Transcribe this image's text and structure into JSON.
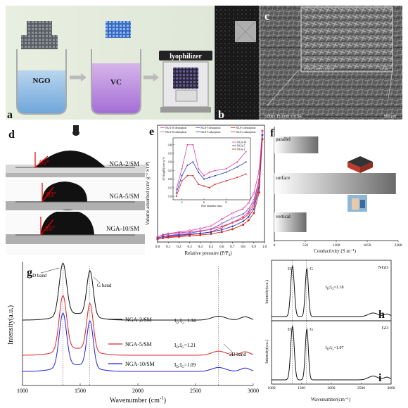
{
  "panel_letters": {
    "a": "a",
    "b": "b",
    "c": "c",
    "d": "d",
    "e": "e",
    "f": "f",
    "g": "g",
    "h": "h",
    "i": "i"
  },
  "panel_a": {
    "beaker1": "NGO",
    "beaker2": "VC",
    "device": "lyophilizer"
  },
  "panel_c": {
    "inset_meta": "5.00kV 5.3mm ×1.0k SE",
    "inset_scale": "5.0 μm",
    "meta": "5.00kV 15.2mm ×70 SE",
    "scale": "500 μm"
  },
  "panel_d": {
    "rows": [
      {
        "angle": "65°",
        "label": "NGA-2/SM"
      },
      {
        "angle": "93°",
        "label": "NGA-5/SM"
      },
      {
        "angle": "85°",
        "label": "NGA-10/SM"
      }
    ]
  },
  "chart_data": [
    {
      "panel": "e",
      "type": "line",
      "xlabel": "Relative pressure (P/P",
      "xlabel_sub": "0",
      "xlabel_end": ")",
      "ylabel": "Volume adsorbed (cm³ g⁻¹ STP)",
      "xlim": [
        0.0,
        1.0
      ],
      "xticks": [
        "0.0",
        "0.1",
        "0.2",
        "0.3",
        "0.4",
        "0.5",
        "0.6",
        "0.7",
        "0.8",
        "0.9",
        "1.0"
      ],
      "legend": [
        "NGA-10 desorption",
        "NGA-5 desorption",
        "NGA-2 desorption",
        "NGA-10 adsorption",
        "NGA-5 adsorption",
        "NGA-2 adsorption"
      ],
      "x": [
        0.0,
        0.05,
        0.1,
        0.2,
        0.3,
        0.4,
        0.5,
        0.6,
        0.7,
        0.8,
        0.85,
        0.9,
        0.95,
        0.98
      ],
      "series": [
        {
          "name": "NGA-10 desorption",
          "color": "#e040a0",
          "values": [
            18,
            26,
            30,
            36,
            41,
            48,
            58,
            82,
            104,
            120,
            140,
            175,
            255,
            400
          ]
        },
        {
          "name": "NGA-5 desorption",
          "color": "#6a5acd",
          "values": [
            14,
            20,
            23,
            28,
            32,
            38,
            46,
            66,
            86,
            100,
            118,
            150,
            225,
            385
          ]
        },
        {
          "name": "NGA-2 desorption",
          "color": "#dd2222",
          "values": [
            10,
            15,
            18,
            22,
            26,
            30,
            36,
            52,
            70,
            84,
            100,
            130,
            205,
            370
          ]
        },
        {
          "name": "NGA-10 adsorption",
          "color": "#e040a0",
          "values": [
            18,
            25,
            28,
            33,
            36,
            40,
            46,
            56,
            70,
            90,
            108,
            140,
            220,
            400
          ]
        },
        {
          "name": "NGA-5 adsorption",
          "color": "#1e40c8",
          "values": [
            14,
            19,
            21,
            25,
            28,
            31,
            36,
            44,
            56,
            74,
            90,
            118,
            195,
            385
          ]
        },
        {
          "name": "NGA-2 adsorption",
          "color": "#dd2222",
          "values": [
            10,
            14,
            16,
            19,
            22,
            25,
            29,
            36,
            46,
            62,
            78,
            104,
            178,
            370
          ]
        }
      ]
    },
    {
      "panel": "e-inset",
      "type": "line",
      "xlabel": "Pore diameter (nm)",
      "ylabel": "dV/dlog(D) (cm³ g⁻¹)",
      "xticks": [
        "4",
        "6",
        "8"
      ],
      "yticks": [
        "0.10",
        "0.15",
        "0.20",
        "0.25",
        "0.30",
        "0.35",
        "0.40"
      ],
      "legend": [
        "NGA-10",
        "NGA-5",
        "NGA-2"
      ],
      "x": [
        3.5,
        4,
        4.5,
        5,
        5.5,
        6,
        6.5,
        7,
        8,
        9,
        9.8
      ],
      "series": [
        {
          "name": "NGA-10",
          "color": "#e040a0",
          "values": [
            0.14,
            0.26,
            0.4,
            0.4,
            0.26,
            0.22,
            0.24,
            0.25,
            0.26,
            0.3,
            0.36
          ]
        },
        {
          "name": "NGA-5",
          "color": "#1e40c8",
          "values": [
            0.12,
            0.22,
            0.28,
            0.3,
            0.24,
            0.2,
            0.21,
            0.22,
            0.24,
            0.27,
            0.3
          ]
        },
        {
          "name": "NGA-2",
          "color": "#dd2222",
          "values": [
            0.1,
            0.19,
            0.22,
            0.22,
            0.17,
            0.16,
            0.15,
            0.17,
            0.19,
            0.21,
            0.23
          ]
        }
      ]
    },
    {
      "panel": "f",
      "type": "bar",
      "orientation": "horizontal",
      "categories": [
        "parallel",
        "surface",
        "vertical"
      ],
      "values": [
        780,
        2160,
        570
      ],
      "xlabel": "Conductivity (S m⁻¹)",
      "xticks": [
        "0",
        "550",
        "1100",
        "1650",
        "2200"
      ],
      "xlim": [
        0,
        2200
      ]
    },
    {
      "panel": "g",
      "type": "line",
      "xlabel": "Wavenumber (cm",
      "xlabel_sup": "-1",
      "xlabel_end": ")",
      "ylabel": "Intensity(a.u.)",
      "xlim": [
        1000,
        3000
      ],
      "xticks": [
        "1000",
        "1500",
        "2000",
        "2500",
        "3000"
      ],
      "annotations": [
        "D band",
        "G band",
        "2D band"
      ],
      "series": [
        {
          "name": "NGA-2/SM",
          "color": "#111111",
          "ratio": "I",
          "ratio_sub": "D",
          "ratio_mid": ":I",
          "ratio_sub2": "G",
          "ratio_val": "=1.34"
        },
        {
          "name": "NGA-5/SM",
          "color": "#e02020",
          "ratio": "I",
          "ratio_sub": "D",
          "ratio_mid": ":I",
          "ratio_sub2": "G",
          "ratio_val": "=1.21"
        },
        {
          "name": "NGA-10/SM",
          "color": "#2020e0",
          "ratio": "I",
          "ratio_sub": "D",
          "ratio_mid": ":I",
          "ratio_sub2": "G",
          "ratio_val": "=1.09"
        }
      ]
    },
    {
      "panel": "h",
      "type": "line",
      "ylabel": "Intensity(a.u.)",
      "label": "NGO",
      "peaks": [
        "D",
        "G"
      ],
      "ratio": "I",
      "ratio_sub": "D",
      "ratio_mid": ":I",
      "ratio_sub2": "G",
      "ratio_val": "=1.18"
    },
    {
      "panel": "i",
      "type": "line",
      "ylabel": "Intensity(a.u.)",
      "label": "GO",
      "peaks": [
        "D",
        "G"
      ],
      "ratio": "I",
      "ratio_sub": "D",
      "ratio_mid": ":I",
      "ratio_sub2": "G",
      "ratio_val": "=1.07",
      "xlabel": "Wavenumber(cm⁻¹)",
      "xticks": [
        "1000",
        "1500",
        "2000",
        "2500",
        "3000"
      ]
    }
  ]
}
